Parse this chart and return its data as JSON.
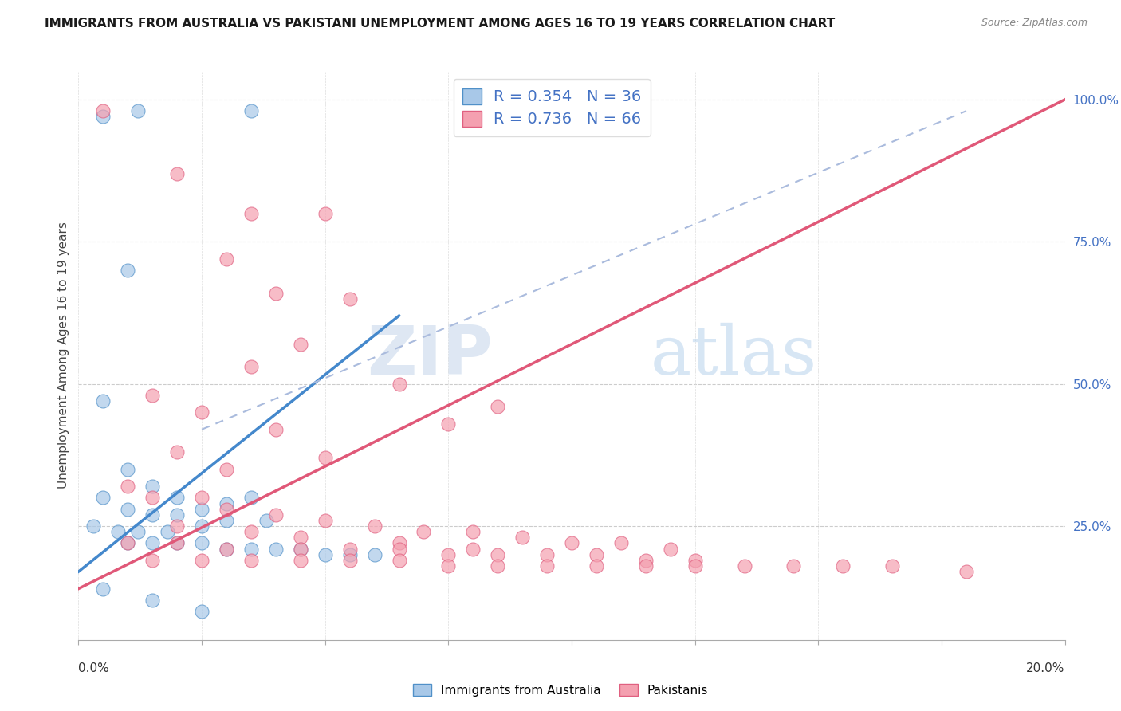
{
  "title": "IMMIGRANTS FROM AUSTRALIA VS PAKISTANI UNEMPLOYMENT AMONG AGES 16 TO 19 YEARS CORRELATION CHART",
  "source": "Source: ZipAtlas.com",
  "ylabel": "Unemployment Among Ages 16 to 19 years",
  "legend_r1": "R = 0.354   N = 36",
  "legend_r2": "R = 0.736   N = 66",
  "watermark_zip": "ZIP",
  "watermark_atlas": "atlas",
  "blue_color": "#a8c8e8",
  "pink_color": "#f4a0b0",
  "blue_edge_color": "#5090c8",
  "pink_edge_color": "#e06080",
  "blue_line_color": "#4488cc",
  "pink_line_color": "#e05878",
  "dashed_line_color": "#aabbdd",
  "blue_scatter": [
    [
      0.5,
      97
    ],
    [
      1.2,
      98
    ],
    [
      3.5,
      98
    ],
    [
      1.0,
      70
    ],
    [
      0.5,
      47
    ],
    [
      1.0,
      35
    ],
    [
      1.5,
      32
    ],
    [
      2.0,
      30
    ],
    [
      0.5,
      30
    ],
    [
      1.0,
      28
    ],
    [
      1.5,
      27
    ],
    [
      2.0,
      27
    ],
    [
      2.5,
      28
    ],
    [
      3.0,
      29
    ],
    [
      3.5,
      30
    ],
    [
      0.3,
      25
    ],
    [
      0.8,
      24
    ],
    [
      1.2,
      24
    ],
    [
      1.8,
      24
    ],
    [
      2.5,
      25
    ],
    [
      3.0,
      26
    ],
    [
      3.8,
      26
    ],
    [
      1.0,
      22
    ],
    [
      1.5,
      22
    ],
    [
      2.0,
      22
    ],
    [
      2.5,
      22
    ],
    [
      3.0,
      21
    ],
    [
      3.5,
      21
    ],
    [
      4.0,
      21
    ],
    [
      4.5,
      21
    ],
    [
      5.0,
      20
    ],
    [
      5.5,
      20
    ],
    [
      6.0,
      20
    ],
    [
      0.5,
      14
    ],
    [
      1.5,
      12
    ],
    [
      2.5,
      10
    ]
  ],
  "pink_scatter": [
    [
      0.5,
      98
    ],
    [
      10.0,
      97
    ],
    [
      2.0,
      87
    ],
    [
      3.5,
      80
    ],
    [
      5.0,
      80
    ],
    [
      3.0,
      72
    ],
    [
      4.0,
      66
    ],
    [
      5.5,
      65
    ],
    [
      4.5,
      57
    ],
    [
      3.5,
      53
    ],
    [
      6.5,
      50
    ],
    [
      8.5,
      46
    ],
    [
      1.5,
      48
    ],
    [
      2.5,
      45
    ],
    [
      4.0,
      42
    ],
    [
      2.0,
      38
    ],
    [
      3.0,
      35
    ],
    [
      5.0,
      37
    ],
    [
      7.5,
      43
    ],
    [
      1.0,
      32
    ],
    [
      1.5,
      30
    ],
    [
      2.5,
      30
    ],
    [
      3.0,
      28
    ],
    [
      4.0,
      27
    ],
    [
      5.0,
      26
    ],
    [
      6.0,
      25
    ],
    [
      7.0,
      24
    ],
    [
      8.0,
      24
    ],
    [
      9.0,
      23
    ],
    [
      10.0,
      22
    ],
    [
      11.0,
      22
    ],
    [
      12.0,
      21
    ],
    [
      2.0,
      25
    ],
    [
      3.5,
      24
    ],
    [
      4.5,
      23
    ],
    [
      6.5,
      22
    ],
    [
      8.0,
      21
    ],
    [
      1.0,
      22
    ],
    [
      2.0,
      22
    ],
    [
      3.0,
      21
    ],
    [
      4.5,
      21
    ],
    [
      5.5,
      21
    ],
    [
      6.5,
      21
    ],
    [
      7.5,
      20
    ],
    [
      8.5,
      20
    ],
    [
      9.5,
      20
    ],
    [
      10.5,
      20
    ],
    [
      11.5,
      19
    ],
    [
      12.5,
      19
    ],
    [
      1.5,
      19
    ],
    [
      2.5,
      19
    ],
    [
      3.5,
      19
    ],
    [
      4.5,
      19
    ],
    [
      5.5,
      19
    ],
    [
      6.5,
      19
    ],
    [
      7.5,
      18
    ],
    [
      8.5,
      18
    ],
    [
      9.5,
      18
    ],
    [
      10.5,
      18
    ],
    [
      11.5,
      18
    ],
    [
      12.5,
      18
    ],
    [
      13.5,
      18
    ],
    [
      14.5,
      18
    ],
    [
      15.5,
      18
    ],
    [
      16.5,
      18
    ],
    [
      18.0,
      17
    ]
  ],
  "xlim": [
    0,
    20
  ],
  "ylim": [
    5,
    105
  ],
  "blue_line": [
    [
      0,
      17
    ],
    [
      6.5,
      62
    ]
  ],
  "pink_line": [
    [
      0,
      14
    ],
    [
      20,
      100
    ]
  ],
  "dashed_line": [
    [
      2.5,
      42
    ],
    [
      18,
      98
    ]
  ],
  "yticks": [
    25,
    50,
    75,
    100
  ],
  "ytick_labels": [
    "25.0%",
    "50.0%",
    "75.0%",
    "100.0%"
  ],
  "xtick_label_left": "0.0%",
  "xtick_label_right": "20.0%"
}
